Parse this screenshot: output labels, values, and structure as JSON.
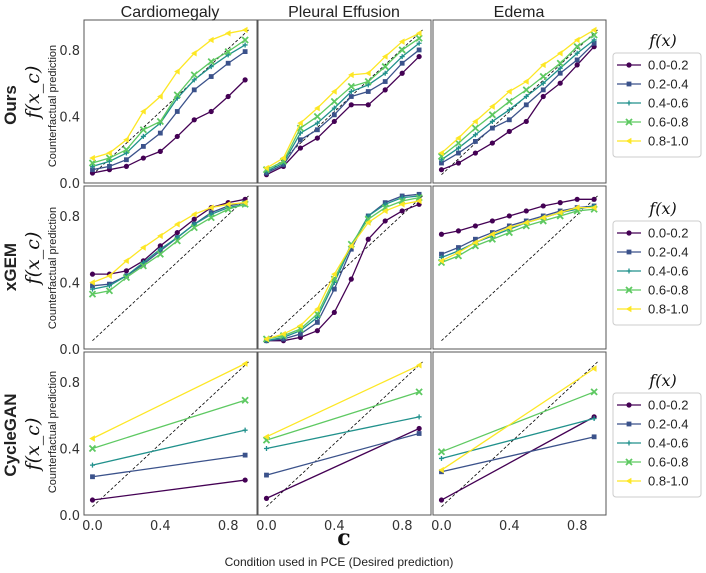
{
  "figure": {
    "xlabel": "Condition used in PCE  (Desired prediction)",
    "x_symbol": "c",
    "ylabel": "Counterfactual prediction",
    "legend_title": "f(x)",
    "columns": [
      "Cardiomegaly",
      "Pleural Effusion",
      "Edema"
    ],
    "colors": {
      "series": [
        "#440154",
        "#3b528b",
        "#21918c",
        "#5ec962",
        "#fde725"
      ],
      "row_label": "#e8141c",
      "diagonal": "#000000",
      "axes": "#555555"
    },
    "rows": [
      {
        "method": "Ours",
        "ylabel_math": "f(x_c)"
      },
      {
        "method": "xGEM",
        "ylabel_math": "f(x_c)"
      },
      {
        "method": "CycleGAN",
        "ylabel_math": "f(x_c)"
      }
    ],
    "legend_entries": [
      "0.0-0.2",
      "0.2-0.4",
      "0.4-0.6",
      "0.6-0.8",
      "0.8-1.0"
    ],
    "markers": [
      "circle",
      "square",
      "plus",
      "x",
      "triangle-left"
    ]
  },
  "chart_data": [
    {
      "type": "line",
      "row": 0,
      "col": 0,
      "title": "Cardiomegaly",
      "x": [
        0.0,
        0.1,
        0.2,
        0.3,
        0.4,
        0.5,
        0.6,
        0.7,
        0.8,
        0.9
      ],
      "xticks": [
        0.0,
        0.4,
        0.8
      ],
      "yticks": [
        0.0,
        0.4,
        0.8
      ],
      "xlim": [
        -0.05,
        0.97
      ],
      "ylim": [
        0.0,
        0.98
      ],
      "series": [
        {
          "name": "0.0-0.2",
          "values": [
            0.06,
            0.08,
            0.1,
            0.15,
            0.19,
            0.28,
            0.38,
            0.43,
            0.52,
            0.62
          ]
        },
        {
          "name": "0.2-0.4",
          "values": [
            0.08,
            0.1,
            0.14,
            0.22,
            0.3,
            0.43,
            0.56,
            0.64,
            0.72,
            0.79
          ]
        },
        {
          "name": "0.4-0.6",
          "values": [
            0.1,
            0.13,
            0.18,
            0.28,
            0.36,
            0.51,
            0.62,
            0.7,
            0.77,
            0.83
          ]
        },
        {
          "name": "0.6-0.8",
          "values": [
            0.12,
            0.15,
            0.2,
            0.32,
            0.37,
            0.53,
            0.65,
            0.73,
            0.79,
            0.86
          ]
        },
        {
          "name": "0.8-1.0",
          "values": [
            0.15,
            0.18,
            0.26,
            0.43,
            0.52,
            0.67,
            0.78,
            0.86,
            0.9,
            0.92
          ]
        }
      ]
    },
    {
      "type": "line",
      "row": 0,
      "col": 1,
      "title": "Pleural Effusion",
      "x": [
        0.0,
        0.1,
        0.2,
        0.3,
        0.4,
        0.5,
        0.6,
        0.7,
        0.8,
        0.9
      ],
      "xticks": [
        0.0,
        0.4,
        0.8
      ],
      "yticks": [
        0.0,
        0.4,
        0.8
      ],
      "xlim": [
        -0.05,
        0.97
      ],
      "ylim": [
        0.0,
        0.98
      ],
      "series": [
        {
          "name": "0.0-0.2",
          "values": [
            0.05,
            0.1,
            0.21,
            0.27,
            0.37,
            0.47,
            0.47,
            0.56,
            0.66,
            0.76
          ]
        },
        {
          "name": "0.2-0.4",
          "values": [
            0.06,
            0.11,
            0.26,
            0.32,
            0.41,
            0.52,
            0.55,
            0.61,
            0.72,
            0.8
          ]
        },
        {
          "name": "0.4-0.6",
          "values": [
            0.07,
            0.12,
            0.3,
            0.36,
            0.45,
            0.55,
            0.59,
            0.66,
            0.76,
            0.84
          ]
        },
        {
          "name": "0.6-0.8",
          "values": [
            0.08,
            0.13,
            0.33,
            0.4,
            0.49,
            0.58,
            0.61,
            0.7,
            0.8,
            0.87
          ]
        },
        {
          "name": "0.8-1.0",
          "values": [
            0.09,
            0.15,
            0.36,
            0.45,
            0.55,
            0.65,
            0.66,
            0.76,
            0.85,
            0.9
          ]
        }
      ]
    },
    {
      "type": "line",
      "row": 0,
      "col": 2,
      "title": "Edema",
      "x": [
        0.0,
        0.1,
        0.2,
        0.3,
        0.4,
        0.5,
        0.6,
        0.7,
        0.8,
        0.9
      ],
      "xticks": [
        0.0,
        0.4,
        0.8
      ],
      "yticks": [
        0.0,
        0.4,
        0.8
      ],
      "xlim": [
        -0.05,
        0.97
      ],
      "ylim": [
        0.0,
        0.98
      ],
      "series": [
        {
          "name": "0.0-0.2",
          "values": [
            0.08,
            0.12,
            0.18,
            0.24,
            0.31,
            0.37,
            0.52,
            0.6,
            0.71,
            0.82
          ]
        },
        {
          "name": "0.2-0.4",
          "values": [
            0.12,
            0.18,
            0.25,
            0.33,
            0.38,
            0.47,
            0.56,
            0.66,
            0.74,
            0.84
          ]
        },
        {
          "name": "0.4-0.6",
          "values": [
            0.14,
            0.21,
            0.29,
            0.37,
            0.44,
            0.52,
            0.6,
            0.69,
            0.78,
            0.86
          ]
        },
        {
          "name": "0.6-0.8",
          "values": [
            0.16,
            0.24,
            0.33,
            0.41,
            0.49,
            0.56,
            0.64,
            0.72,
            0.82,
            0.89
          ]
        },
        {
          "name": "0.8-1.0",
          "values": [
            0.18,
            0.27,
            0.37,
            0.46,
            0.55,
            0.61,
            0.71,
            0.78,
            0.86,
            0.92
          ]
        }
      ]
    },
    {
      "type": "line",
      "row": 1,
      "col": 0,
      "title": "",
      "x": [
        0.0,
        0.1,
        0.2,
        0.3,
        0.4,
        0.5,
        0.6,
        0.7,
        0.8,
        0.9
      ],
      "xticks": [
        0.0,
        0.4,
        0.8
      ],
      "yticks": [
        0.0,
        0.4,
        0.8
      ],
      "xlim": [
        -0.05,
        0.97
      ],
      "ylim": [
        0.0,
        0.98
      ],
      "series": [
        {
          "name": "0.0-0.2",
          "values": [
            0.45,
            0.45,
            0.47,
            0.53,
            0.62,
            0.7,
            0.78,
            0.85,
            0.88,
            0.9
          ]
        },
        {
          "name": "0.2-0.4",
          "values": [
            0.38,
            0.39,
            0.44,
            0.51,
            0.59,
            0.67,
            0.75,
            0.82,
            0.86,
            0.88
          ]
        },
        {
          "name": "0.4-0.6",
          "values": [
            0.36,
            0.38,
            0.44,
            0.52,
            0.6,
            0.67,
            0.75,
            0.81,
            0.85,
            0.87
          ]
        },
        {
          "name": "0.6-0.8",
          "values": [
            0.33,
            0.35,
            0.43,
            0.5,
            0.57,
            0.65,
            0.73,
            0.79,
            0.84,
            0.87
          ]
        },
        {
          "name": "0.8-1.0",
          "values": [
            0.4,
            0.44,
            0.53,
            0.61,
            0.68,
            0.75,
            0.81,
            0.85,
            0.87,
            0.88
          ]
        }
      ]
    },
    {
      "type": "line",
      "row": 1,
      "col": 1,
      "title": "",
      "x": [
        0.0,
        0.1,
        0.2,
        0.3,
        0.4,
        0.5,
        0.6,
        0.7,
        0.8,
        0.9
      ],
      "xticks": [
        0.0,
        0.4,
        0.8
      ],
      "yticks": [
        0.0,
        0.4,
        0.8
      ],
      "xlim": [
        -0.05,
        0.97
      ],
      "ylim": [
        0.0,
        0.98
      ],
      "series": [
        {
          "name": "0.0-0.2",
          "values": [
            0.05,
            0.05,
            0.07,
            0.11,
            0.22,
            0.42,
            0.66,
            0.77,
            0.83,
            0.87
          ]
        },
        {
          "name": "0.2-0.4",
          "values": [
            0.05,
            0.06,
            0.09,
            0.16,
            0.36,
            0.6,
            0.8,
            0.88,
            0.92,
            0.93
          ]
        },
        {
          "name": "0.4-0.6",
          "values": [
            0.05,
            0.07,
            0.11,
            0.19,
            0.4,
            0.62,
            0.8,
            0.87,
            0.91,
            0.92
          ]
        },
        {
          "name": "0.6-0.8",
          "values": [
            0.06,
            0.08,
            0.12,
            0.21,
            0.42,
            0.63,
            0.78,
            0.85,
            0.89,
            0.91
          ]
        },
        {
          "name": "0.8-1.0",
          "values": [
            0.06,
            0.09,
            0.14,
            0.24,
            0.45,
            0.62,
            0.76,
            0.83,
            0.87,
            0.89
          ]
        }
      ]
    },
    {
      "type": "line",
      "row": 1,
      "col": 2,
      "title": "",
      "x": [
        0.0,
        0.1,
        0.2,
        0.3,
        0.4,
        0.5,
        0.6,
        0.7,
        0.8,
        0.9
      ],
      "xticks": [
        0.0,
        0.4,
        0.8
      ],
      "yticks": [
        0.0,
        0.4,
        0.8
      ],
      "xlim": [
        -0.05,
        0.97
      ],
      "ylim": [
        0.0,
        0.98
      ],
      "series": [
        {
          "name": "0.0-0.2",
          "values": [
            0.69,
            0.71,
            0.74,
            0.77,
            0.8,
            0.83,
            0.86,
            0.88,
            0.9,
            0.9
          ]
        },
        {
          "name": "0.2-0.4",
          "values": [
            0.57,
            0.61,
            0.66,
            0.7,
            0.74,
            0.77,
            0.8,
            0.83,
            0.85,
            0.86
          ]
        },
        {
          "name": "0.4-0.6",
          "values": [
            0.55,
            0.59,
            0.64,
            0.68,
            0.72,
            0.76,
            0.79,
            0.82,
            0.84,
            0.86
          ]
        },
        {
          "name": "0.6-0.8",
          "values": [
            0.52,
            0.56,
            0.62,
            0.66,
            0.7,
            0.74,
            0.77,
            0.8,
            0.83,
            0.84
          ]
        },
        {
          "name": "0.8-1.0",
          "values": [
            0.53,
            0.58,
            0.64,
            0.69,
            0.73,
            0.76,
            0.79,
            0.82,
            0.85,
            0.85
          ]
        }
      ]
    },
    {
      "type": "line",
      "row": 2,
      "col": 0,
      "title": "",
      "x": [
        0.0,
        0.9
      ],
      "xticks": [
        0.0,
        0.4,
        0.8
      ],
      "yticks": [
        0.0,
        0.4,
        0.8
      ],
      "xlim": [
        -0.05,
        0.97
      ],
      "ylim": [
        0.0,
        0.98
      ],
      "series": [
        {
          "name": "0.0-0.2",
          "values": [
            0.09,
            0.21
          ]
        },
        {
          "name": "0.2-0.4",
          "values": [
            0.23,
            0.36
          ]
        },
        {
          "name": "0.4-0.6",
          "values": [
            0.3,
            0.51
          ]
        },
        {
          "name": "0.6-0.8",
          "values": [
            0.4,
            0.69
          ]
        },
        {
          "name": "0.8-1.0",
          "values": [
            0.46,
            0.91
          ]
        }
      ]
    },
    {
      "type": "line",
      "row": 2,
      "col": 1,
      "title": "",
      "x": [
        0.0,
        0.9
      ],
      "xticks": [
        0.0,
        0.4,
        0.8
      ],
      "yticks": [
        0.0,
        0.4,
        0.8
      ],
      "xlim": [
        -0.05,
        0.97
      ],
      "ylim": [
        0.0,
        0.98
      ],
      "series": [
        {
          "name": "0.0-0.2",
          "values": [
            0.1,
            0.52
          ]
        },
        {
          "name": "0.2-0.4",
          "values": [
            0.24,
            0.49
          ]
        },
        {
          "name": "0.4-0.6",
          "values": [
            0.4,
            0.59
          ]
        },
        {
          "name": "0.6-0.8",
          "values": [
            0.45,
            0.74
          ]
        },
        {
          "name": "0.8-1.0",
          "values": [
            0.47,
            0.9
          ]
        }
      ]
    },
    {
      "type": "line",
      "row": 2,
      "col": 2,
      "title": "",
      "x": [
        0.0,
        0.9
      ],
      "xticks": [
        0.0,
        0.4,
        0.8
      ],
      "yticks": [
        0.0,
        0.4,
        0.8
      ],
      "xlim": [
        -0.05,
        0.97
      ],
      "ylim": [
        0.0,
        0.98
      ],
      "series": [
        {
          "name": "0.0-0.2",
          "values": [
            0.09,
            0.59
          ]
        },
        {
          "name": "0.2-0.4",
          "values": [
            0.26,
            0.47
          ]
        },
        {
          "name": "0.4-0.6",
          "values": [
            0.34,
            0.58
          ]
        },
        {
          "name": "0.6-0.8",
          "values": [
            0.38,
            0.74
          ]
        },
        {
          "name": "0.8-1.0",
          "values": [
            0.27,
            0.88
          ]
        }
      ]
    }
  ]
}
